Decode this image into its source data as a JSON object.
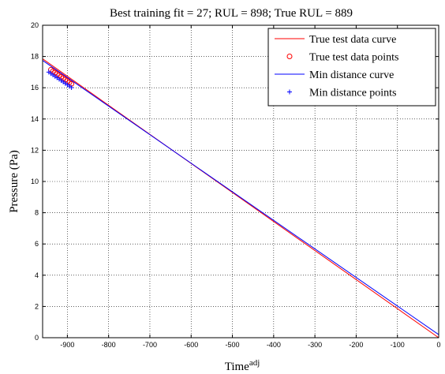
{
  "chart_data": {
    "type": "line",
    "title": "Best training fit = 27; RUL = 898; True RUL = 889",
    "xlabel": "Time",
    "xlabel_superscript": "adj",
    "ylabel": "Pressure (Pa)",
    "xlim": [
      -960,
      0
    ],
    "ylim": [
      0,
      20
    ],
    "xticks": [
      -900,
      -800,
      -700,
      -600,
      -500,
      -400,
      -300,
      -200,
      -100,
      0
    ],
    "yticks": [
      0,
      2,
      4,
      6,
      8,
      10,
      12,
      14,
      16,
      18,
      20
    ],
    "grid": true,
    "legend_position": "top-right",
    "colors": {
      "true_curve": "#ff0000",
      "true_points": "#ff0000",
      "min_curve": "#0000ff",
      "min_points": "#0000ff"
    },
    "series": [
      {
        "name": "True test data curve",
        "kind": "line",
        "x": [
          -960,
          0
        ],
        "y": [
          17.85,
          0.0
        ]
      },
      {
        "name": "True test data points",
        "kind": "marker-o",
        "x": [
          -940,
          -935,
          -930,
          -925,
          -920,
          -915,
          -910,
          -905,
          -900,
          -895,
          -890
        ],
        "y": [
          17.15,
          17.06,
          16.97,
          16.88,
          16.79,
          16.7,
          16.61,
          16.52,
          16.43,
          16.34,
          16.25
        ]
      },
      {
        "name": "Min distance curve",
        "kind": "line",
        "x": [
          -960,
          0
        ],
        "y": [
          17.75,
          0.2
        ]
      },
      {
        "name": "Min distance points",
        "kind": "marker-plus",
        "x": [
          -945,
          -940,
          -935,
          -930,
          -925,
          -920,
          -915,
          -910,
          -905,
          -900,
          -895,
          -890
        ],
        "y": [
          17.0,
          16.91,
          16.82,
          16.73,
          16.64,
          16.55,
          16.46,
          16.37,
          16.28,
          16.19,
          16.1,
          16.01
        ]
      }
    ]
  }
}
